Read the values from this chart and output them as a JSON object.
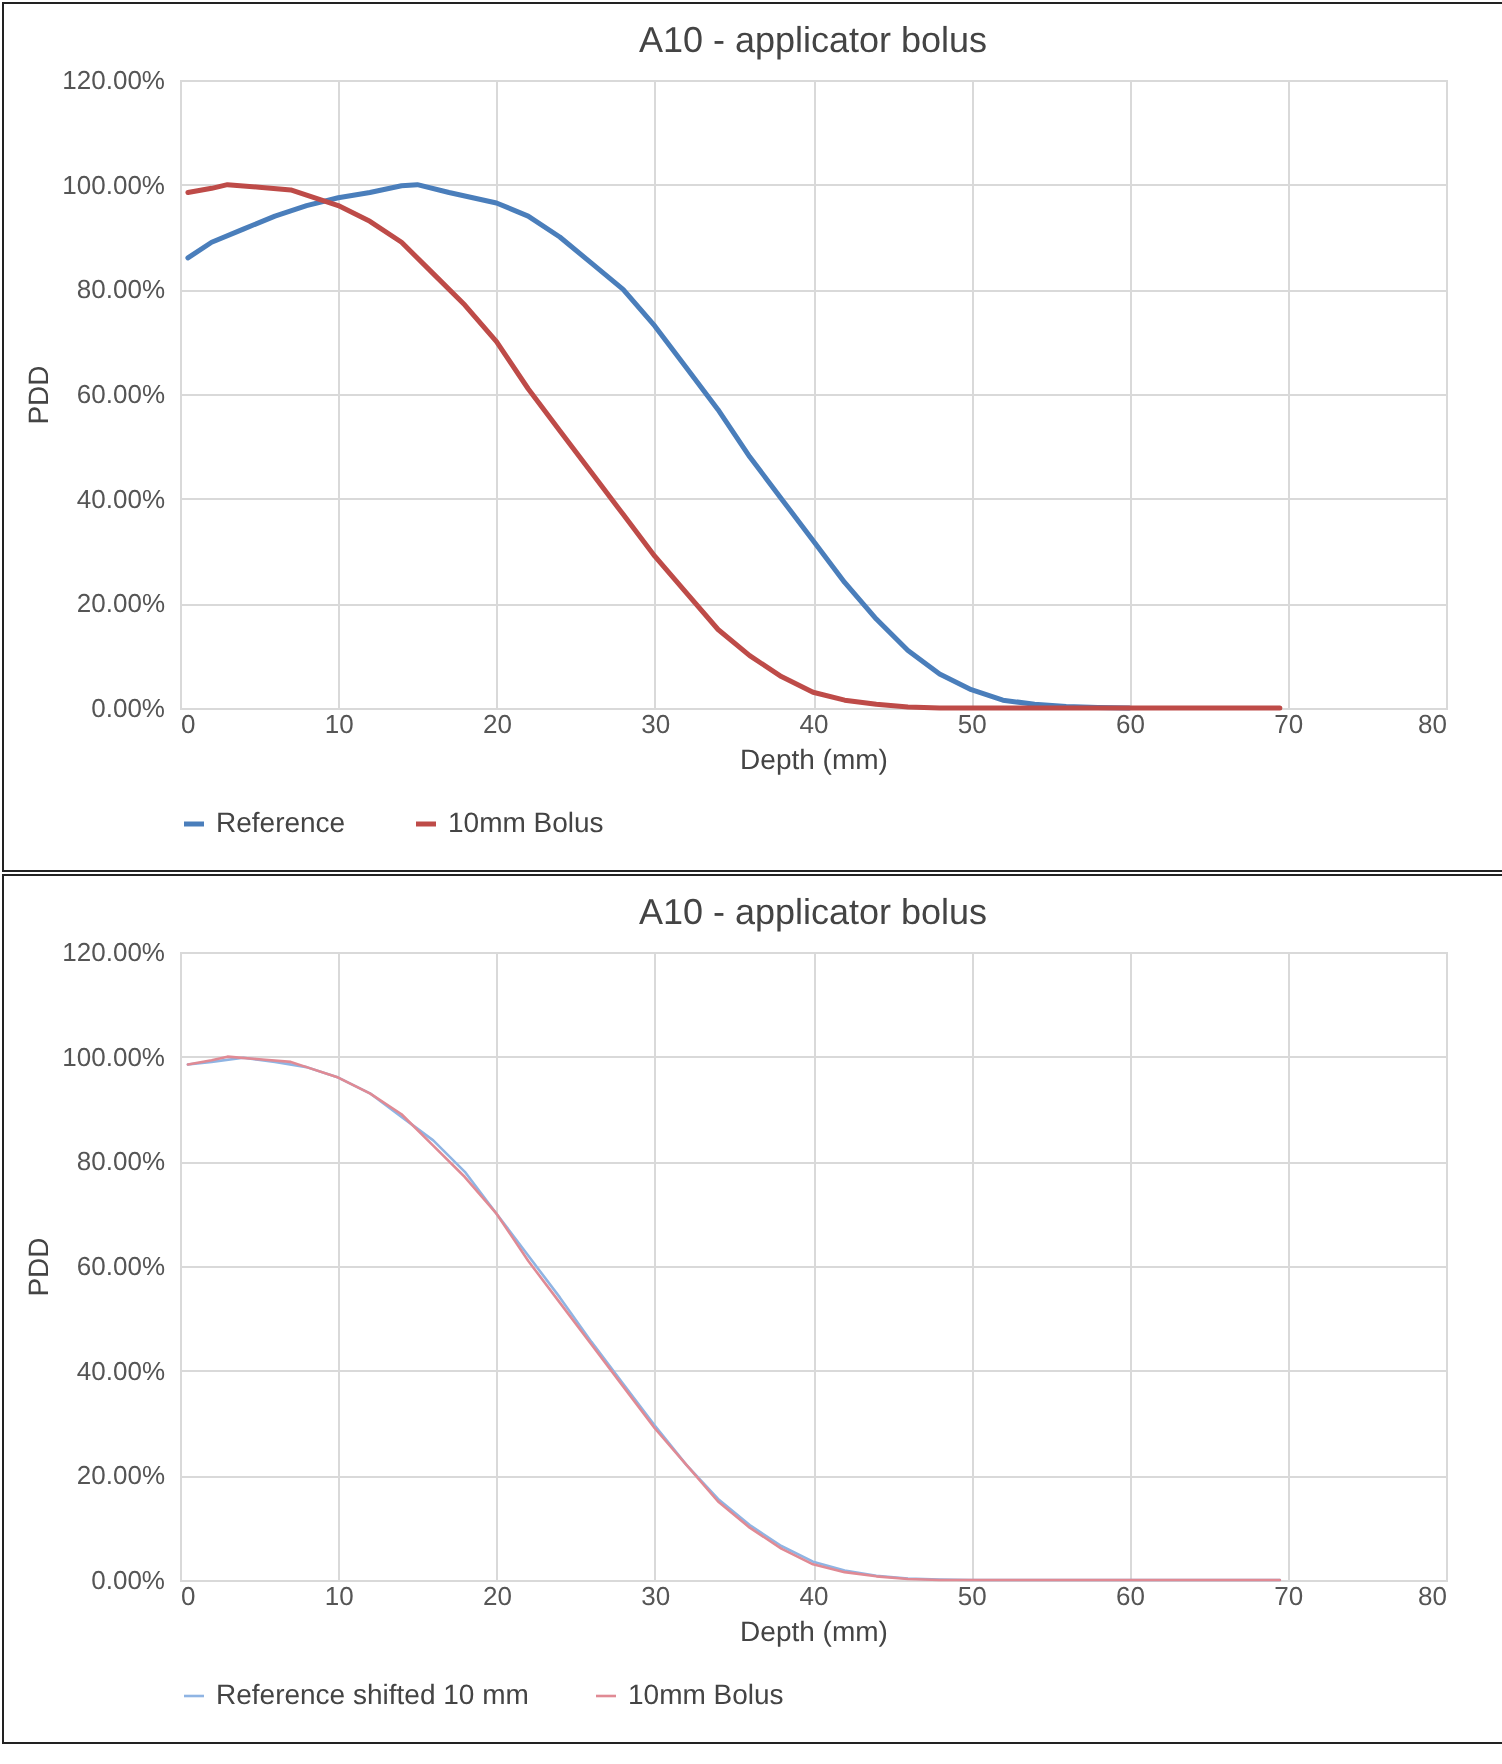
{
  "chart_data": [
    {
      "type": "line",
      "title": "A10 - applicator bolus",
      "xlabel": "Depth (mm)",
      "ylabel": "PDD",
      "xlim": [
        0,
        80
      ],
      "xticks": [
        0,
        10,
        20,
        30,
        40,
        50,
        60,
        70,
        80
      ],
      "ylim": [
        0,
        120
      ],
      "yticks": [
        {
          "value": 0,
          "label": "0.00%"
        },
        {
          "value": 20,
          "label": "20.00%"
        },
        {
          "value": 40,
          "label": "40.00%"
        },
        {
          "value": 60,
          "label": "60.00%"
        },
        {
          "value": 80,
          "label": "80.00%"
        },
        {
          "value": 100,
          "label": "100.00%"
        },
        {
          "value": 120,
          "label": "120.00%"
        }
      ],
      "grid": true,
      "legend": "bottom",
      "marker": "none",
      "line_style": "solid",
      "series": [
        {
          "name": "Reference",
          "color": "#4a7ebb",
          "x": [
            0.5,
            2,
            4,
            6,
            8,
            10,
            12,
            14,
            15,
            17,
            20,
            22,
            24,
            26,
            28,
            30,
            32,
            34,
            36,
            38,
            40,
            42,
            44,
            46,
            48,
            50,
            52,
            54,
            56,
            58,
            60
          ],
          "values": [
            86,
            89,
            91.5,
            94,
            96,
            97.5,
            98.5,
            99.8,
            100,
            98.5,
            96.5,
            94,
            90,
            85,
            80,
            73,
            65,
            57,
            48,
            40,
            32,
            24,
            17,
            11,
            6.5,
            3.5,
            1.5,
            0.7,
            0.3,
            0.1,
            0
          ]
        },
        {
          "name": "10mm Bolus",
          "color": "#be4b48",
          "x": [
            0.5,
            2,
            3,
            5,
            7,
            8,
            10,
            12,
            14,
            16,
            18,
            20,
            22,
            24,
            26,
            28,
            30,
            32,
            34,
            36,
            38,
            40,
            42,
            44,
            46,
            48,
            55,
            69.5
          ],
          "values": [
            98.5,
            99.3,
            100,
            99.5,
            99,
            98,
            96,
            93,
            89,
            83,
            77,
            70,
            61,
            53,
            45,
            37,
            29,
            22,
            15,
            10,
            6,
            3,
            1.5,
            0.7,
            0.2,
            0,
            0,
            0
          ]
        }
      ]
    },
    {
      "type": "line",
      "title": "A10 - applicator bolus",
      "xlabel": "Depth (mm)",
      "ylabel": "PDD",
      "xlim": [
        0,
        80
      ],
      "xticks": [
        0,
        10,
        20,
        30,
        40,
        50,
        60,
        70,
        80
      ],
      "ylim": [
        0,
        120
      ],
      "yticks": [
        {
          "value": 0,
          "label": "0.00%"
        },
        {
          "value": 20,
          "label": "20.00%"
        },
        {
          "value": 40,
          "label": "40.00%"
        },
        {
          "value": 60,
          "label": "60.00%"
        },
        {
          "value": 80,
          "label": "80.00%"
        },
        {
          "value": 100,
          "label": "100.00%"
        },
        {
          "value": 120,
          "label": "120.00%"
        }
      ],
      "grid": true,
      "legend": "bottom",
      "marker": "none",
      "line_style": "solid",
      "series": [
        {
          "name": "Reference shifted 10 mm",
          "color": "#8fb4e3",
          "x": [
            0.5,
            2,
            4,
            6,
            8,
            10,
            12,
            14,
            16,
            18,
            20,
            22,
            24,
            26,
            28,
            30,
            32,
            34,
            36,
            38,
            40,
            42,
            44,
            46,
            48,
            50,
            55,
            69.5
          ],
          "values": [
            98.5,
            99,
            99.8,
            99,
            98,
            96,
            93,
            88.5,
            84,
            78,
            70,
            62,
            54,
            45.5,
            37.5,
            29.5,
            22,
            15.5,
            10.5,
            6.5,
            3.5,
            1.8,
            0.8,
            0.3,
            0.1,
            0,
            0,
            0
          ]
        },
        {
          "name": "10mm Bolus",
          "color": "#e08a94",
          "x": [
            0.5,
            2,
            3,
            5,
            7,
            8,
            10,
            12,
            14,
            16,
            18,
            20,
            22,
            24,
            26,
            28,
            30,
            32,
            34,
            36,
            38,
            40,
            42,
            44,
            46,
            48,
            55,
            69.5
          ],
          "values": [
            98.5,
            99.3,
            100,
            99.5,
            99,
            98,
            96,
            93,
            89,
            83,
            77,
            70,
            61,
            53,
            45,
            37,
            29,
            22,
            15,
            10,
            6,
            3,
            1.5,
            0.7,
            0.2,
            0,
            0,
            0
          ]
        }
      ]
    }
  ]
}
